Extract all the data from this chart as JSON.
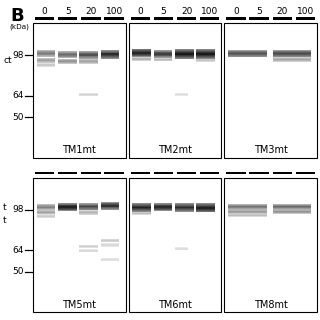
{
  "title": "B",
  "background": "#ffffff",
  "kda_label": "(kDa)",
  "mw_markers": [
    "98",
    "64",
    "50"
  ],
  "dose_labels": [
    "0",
    "5",
    "20",
    "100"
  ],
  "panels_top": [
    "TM1mt",
    "TM2mt",
    "TM3mt"
  ],
  "panels_bottom": [
    "TM5mt",
    "TM6mt",
    "TM8mt"
  ],
  "panel_label_fontsize": 7.0,
  "title_fontsize": 13,
  "dose_fontsize": 6.5,
  "mw_fontsize": 6.5,
  "left_text_top": "ct",
  "left_text_bottom1": "t",
  "left_text_bottom2": "t",
  "top_panels_bands": [
    [
      [
        0.04,
        0.2,
        0.2,
        0.05,
        0.55
      ],
      [
        0.04,
        0.26,
        0.2,
        0.035,
        0.4
      ],
      [
        0.04,
        0.3,
        0.2,
        0.025,
        0.25
      ],
      [
        0.27,
        0.21,
        0.2,
        0.05,
        0.62
      ],
      [
        0.27,
        0.265,
        0.2,
        0.04,
        0.45
      ],
      [
        0.5,
        0.21,
        0.2,
        0.055,
        0.72
      ],
      [
        0.5,
        0.265,
        0.2,
        0.04,
        0.38
      ],
      [
        0.5,
        0.52,
        0.2,
        0.025,
        0.18
      ],
      [
        0.73,
        0.2,
        0.2,
        0.065,
        0.88
      ]
    ],
    [
      [
        0.04,
        0.19,
        0.2,
        0.065,
        0.9
      ],
      [
        0.04,
        0.255,
        0.2,
        0.025,
        0.35
      ],
      [
        0.27,
        0.2,
        0.2,
        0.06,
        0.8
      ],
      [
        0.27,
        0.26,
        0.2,
        0.025,
        0.3
      ],
      [
        0.5,
        0.19,
        0.2,
        0.075,
        0.95
      ],
      [
        0.5,
        0.52,
        0.14,
        0.022,
        0.15
      ],
      [
        0.73,
        0.19,
        0.2,
        0.075,
        0.95
      ],
      [
        0.73,
        0.265,
        0.2,
        0.022,
        0.28
      ]
    ],
    [
      [
        0.04,
        0.2,
        0.42,
        0.055,
        0.72
      ],
      [
        0.52,
        0.2,
        0.42,
        0.055,
        0.76
      ],
      [
        0.52,
        0.255,
        0.42,
        0.032,
        0.38
      ]
    ]
  ],
  "bottom_panels_bands": [
    [
      [
        0.04,
        0.2,
        0.2,
        0.04,
        0.52
      ],
      [
        0.04,
        0.24,
        0.2,
        0.035,
        0.38
      ],
      [
        0.04,
        0.275,
        0.2,
        0.025,
        0.22
      ],
      [
        0.27,
        0.19,
        0.2,
        0.06,
        0.92
      ],
      [
        0.5,
        0.19,
        0.2,
        0.055,
        0.75
      ],
      [
        0.5,
        0.245,
        0.2,
        0.032,
        0.32
      ],
      [
        0.5,
        0.5,
        0.2,
        0.025,
        0.2
      ],
      [
        0.5,
        0.535,
        0.2,
        0.022,
        0.18
      ],
      [
        0.73,
        0.18,
        0.2,
        0.06,
        0.85
      ],
      [
        0.73,
        0.455,
        0.2,
        0.028,
        0.22
      ],
      [
        0.73,
        0.49,
        0.2,
        0.025,
        0.18
      ],
      [
        0.73,
        0.6,
        0.2,
        0.022,
        0.15
      ]
    ],
    [
      [
        0.04,
        0.19,
        0.2,
        0.065,
        0.92
      ],
      [
        0.04,
        0.255,
        0.2,
        0.022,
        0.28
      ],
      [
        0.27,
        0.19,
        0.2,
        0.06,
        0.88
      ],
      [
        0.5,
        0.19,
        0.2,
        0.065,
        0.88
      ],
      [
        0.5,
        0.52,
        0.14,
        0.022,
        0.16
      ],
      [
        0.73,
        0.19,
        0.2,
        0.07,
        0.92
      ]
    ],
    [
      [
        0.04,
        0.2,
        0.42,
        0.038,
        0.58
      ],
      [
        0.04,
        0.238,
        0.42,
        0.032,
        0.42
      ],
      [
        0.04,
        0.27,
        0.42,
        0.022,
        0.28
      ],
      [
        0.52,
        0.2,
        0.42,
        0.038,
        0.62
      ],
      [
        0.52,
        0.238,
        0.42,
        0.032,
        0.44
      ]
    ]
  ]
}
